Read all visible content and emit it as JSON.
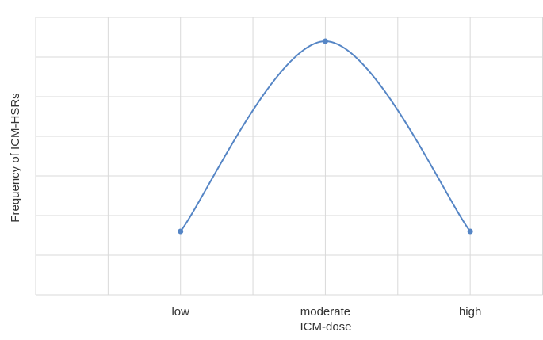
{
  "chart_data": {
    "type": "line",
    "x_label": "ICM-dose",
    "y_label": "Frequency of ICM-HSRs",
    "x": [
      1,
      2,
      3
    ],
    "xticks": [
      {
        "value": 1,
        "label": "low"
      },
      {
        "value": 2,
        "label": "moderate"
      },
      {
        "value": 3,
        "label": "high"
      }
    ],
    "xlim": [
      0,
      3.5
    ],
    "ylim": [
      0,
      7
    ],
    "xgrid": [
      0,
      0.5,
      1,
      1.5,
      2,
      2.5,
      3,
      3.5
    ],
    "ygrid": [
      0,
      1,
      2,
      3,
      4,
      5,
      6,
      7
    ],
    "smooth": true,
    "series": [
      {
        "color": "#5585c5",
        "values": [
          1.6,
          6.4,
          1.6
        ]
      }
    ]
  }
}
